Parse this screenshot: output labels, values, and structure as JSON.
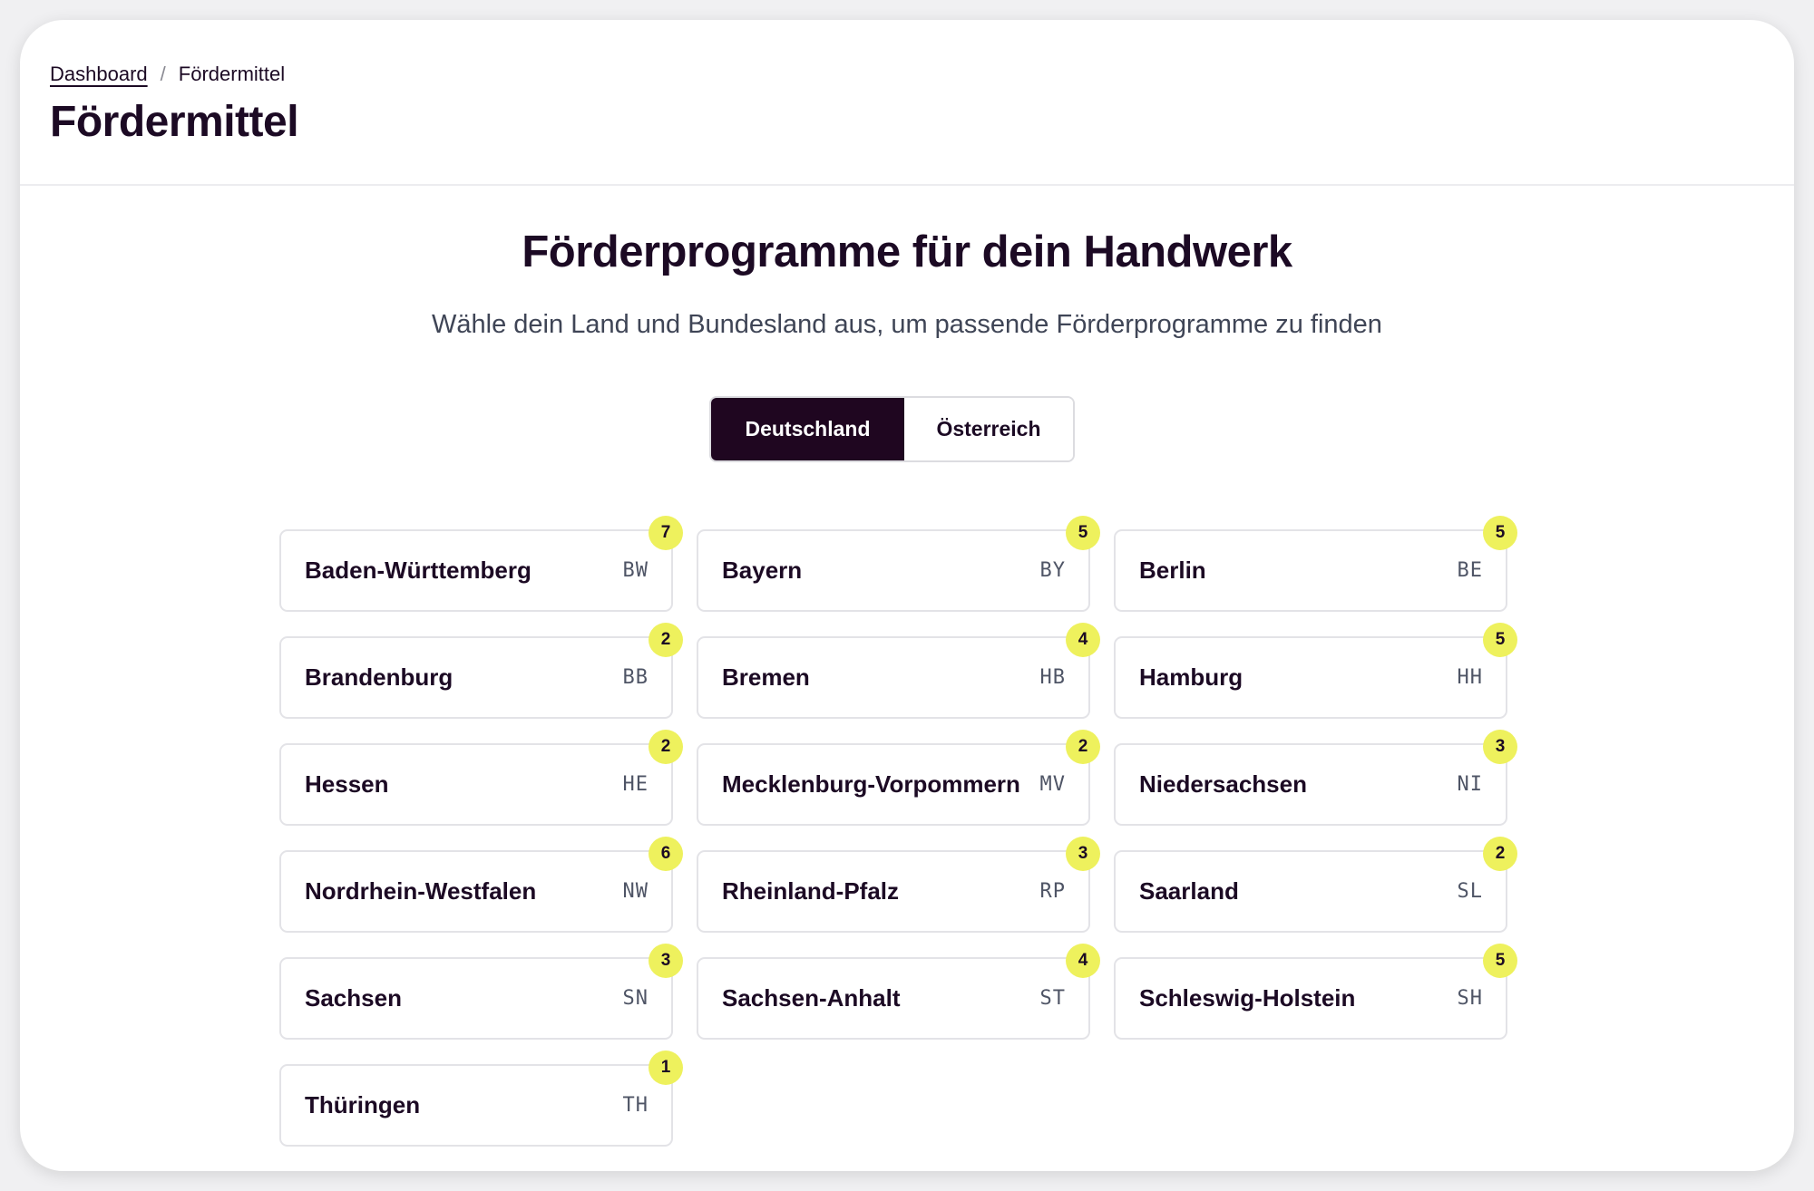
{
  "breadcrumb": {
    "home": "Dashboard",
    "separator": "/",
    "current": "Fördermittel"
  },
  "page_title": "Fördermittel",
  "hero": {
    "title": "Förderprogramme für dein Handwerk",
    "subtitle": "Wähle dein Land und Bundesland aus, um passende Förderprogramme zu finden"
  },
  "country_toggle": {
    "options": [
      "Deutschland",
      "Österreich"
    ],
    "selected": "Deutschland"
  },
  "states": [
    {
      "name": "Baden-Württemberg",
      "code": "BW",
      "count": "7"
    },
    {
      "name": "Bayern",
      "code": "BY",
      "count": "5"
    },
    {
      "name": "Berlin",
      "code": "BE",
      "count": "5"
    },
    {
      "name": "Brandenburg",
      "code": "BB",
      "count": "2"
    },
    {
      "name": "Bremen",
      "code": "HB",
      "count": "4"
    },
    {
      "name": "Hamburg",
      "code": "HH",
      "count": "5"
    },
    {
      "name": "Hessen",
      "code": "HE",
      "count": "2"
    },
    {
      "name": "Mecklenburg-Vorpommern",
      "code": "MV",
      "count": "2"
    },
    {
      "name": "Niedersachsen",
      "code": "NI",
      "count": "3"
    },
    {
      "name": "Nordrhein-Westfalen",
      "code": "NW",
      "count": "6"
    },
    {
      "name": "Rheinland-Pfalz",
      "code": "RP",
      "count": "3"
    },
    {
      "name": "Saarland",
      "code": "SL",
      "count": "2"
    },
    {
      "name": "Sachsen",
      "code": "SN",
      "count": "3"
    },
    {
      "name": "Sachsen-Anhalt",
      "code": "ST",
      "count": "4"
    },
    {
      "name": "Schleswig-Holstein",
      "code": "SH",
      "count": "5"
    },
    {
      "name": "Thüringen",
      "code": "TH",
      "count": "1"
    }
  ],
  "colors": {
    "primary": "#1f0620",
    "badge": "#eef15d",
    "text": "#1c0a24",
    "muted": "#3f4556",
    "border": "#e3e3e7"
  }
}
